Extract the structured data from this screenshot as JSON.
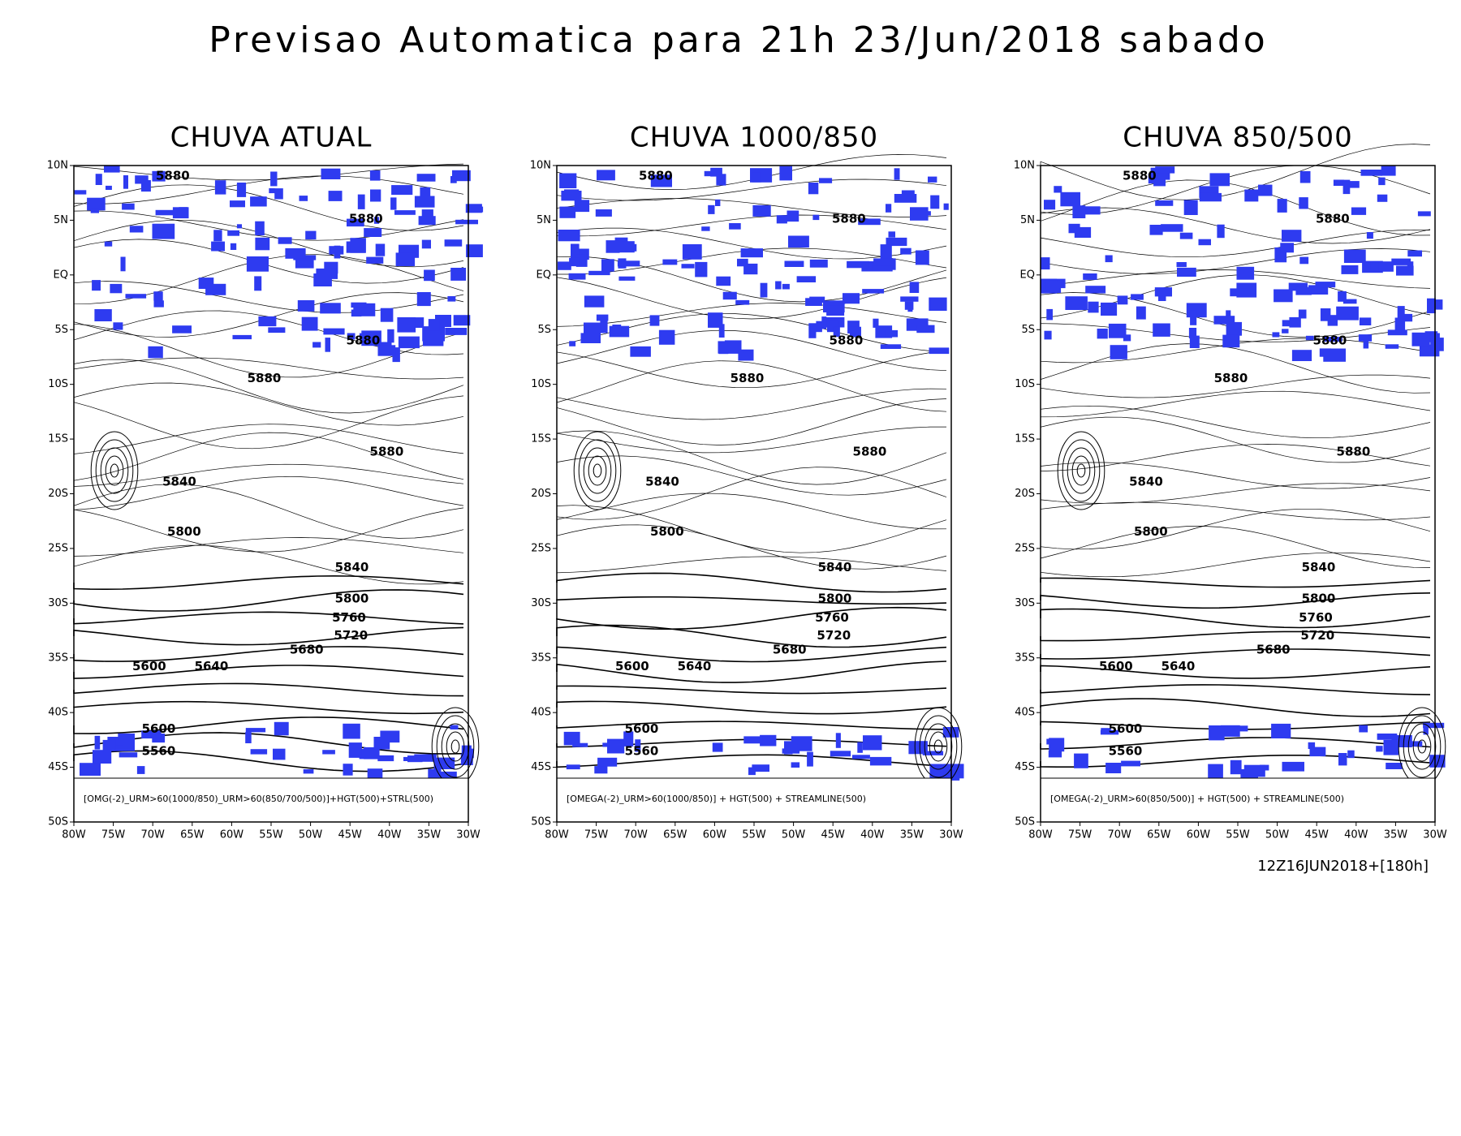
{
  "title": "Previsao Automatica para 21h 23/Jun/2018 sabado",
  "panels": [
    {
      "title": "CHUVA ATUAL",
      "legend": "[OMG(-2)_URM>60(1000/850)_URM>60(850/700/500)]+HGT(500)+STRL(500)",
      "contour_labels": [
        5880,
        5880,
        5880,
        5880,
        5880,
        5840,
        5800,
        5840,
        5800,
        5760,
        5720,
        5680,
        5600,
        5640,
        5600,
        5560
      ]
    },
    {
      "title": "CHUVA 1000/850",
      "legend": "[OMEGA(-2)_URM>60(1000/850)] + HGT(500) + STREAMLINE(500)",
      "contour_labels": [
        5880,
        5880,
        5880,
        5880,
        5880,
        5840,
        5800,
        5840,
        5800,
        5760,
        5720,
        5680,
        5600,
        5640,
        5600,
        5560
      ]
    },
    {
      "title": "CHUVA 850/500",
      "legend": "[OMEGA(-2)_URM>60(850/500)] + HGT(500) + STREAMLINE(500)",
      "contour_labels": [
        5880,
        5880,
        5880,
        5880,
        5880,
        5840,
        5800,
        5840,
        5800,
        5760,
        5720,
        5680,
        5600,
        5640,
        5600,
        5560
      ]
    }
  ],
  "x_labels": [
    "80W",
    "75W",
    "70W",
    "65W",
    "60W",
    "55W",
    "50W",
    "45W",
    "40W",
    "35W",
    "30W"
  ],
  "y_labels": [
    "10N",
    "5N",
    "EQ",
    "5S",
    "10S",
    "15S",
    "20S",
    "25S",
    "30S",
    "35S",
    "40S",
    "45S",
    "50S"
  ],
  "run_label": "12Z16JUN2018+[180h]"
}
